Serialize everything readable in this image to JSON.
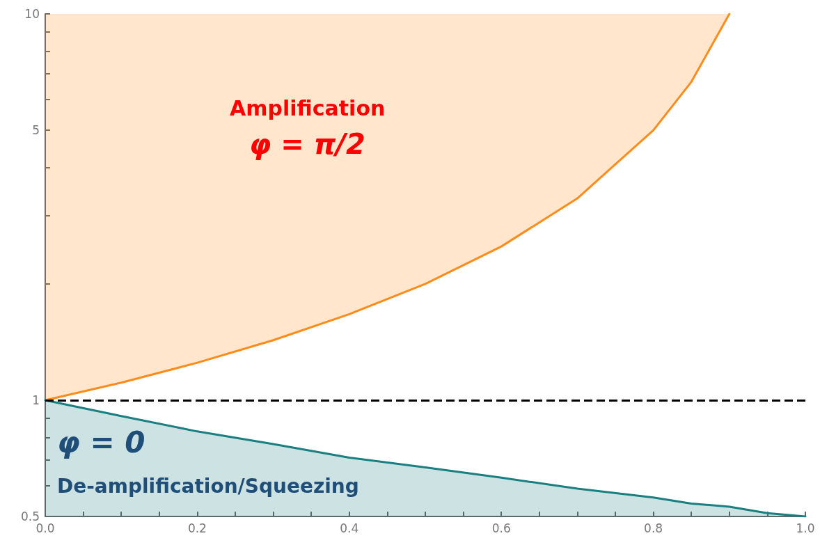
{
  "chart_data": {
    "type": "area",
    "log": "y",
    "x": [
      0,
      0.1,
      0.2,
      0.3,
      0.4,
      0.5,
      0.6,
      0.7,
      0.8,
      0.85,
      0.9,
      0.95,
      1.0
    ],
    "series": [
      {
        "type": "line",
        "color": "#ff8c1a",
        "x": [
          0,
          0.1,
          0.2,
          0.3,
          0.4,
          0.5,
          0.6,
          0.7,
          0.8,
          0.85,
          0.9
        ],
        "values": [
          1,
          1.11,
          1.25,
          1.43,
          1.67,
          2,
          2.5,
          3.33,
          5,
          6.67,
          10
        ],
        "lower": [
          1,
          1.11,
          1.25,
          1.43,
          1.67,
          2,
          2.5,
          3.33,
          5,
          6.67,
          10
        ],
        "upper": [
          10,
          10,
          10,
          10,
          10,
          10,
          10,
          10,
          10,
          10,
          10
        ]
      },
      {
        "color": "#1a7f80",
        "values": [
          1,
          0.91,
          0.83,
          0.77,
          0.71,
          0.67,
          0.63,
          0.59,
          0.56,
          0.54,
          0.53,
          0.51,
          0.5
        ]
      }
    ],
    "xlim": [
      0,
      1
    ],
    "xticks": [
      {
        "value": 0,
        "label": "0.0"
      },
      {
        "value": 0.05,
        "label": null
      },
      {
        "value": 0.1,
        "label": null
      },
      {
        "value": 0.15,
        "label": null
      },
      {
        "value": 0.2,
        "label": "0.2"
      },
      {
        "value": 0.25,
        "label": null
      },
      {
        "value": 0.3,
        "label": null
      },
      {
        "value": 0.35,
        "label": null
      },
      {
        "value": 0.4,
        "label": "0.4"
      },
      {
        "value": 0.45,
        "label": null
      },
      {
        "value": 0.5,
        "label": null
      },
      {
        "value": 0.55,
        "label": null
      },
      {
        "value": 0.6,
        "label": "0.6"
      },
      {
        "value": 0.65,
        "label": null
      },
      {
        "value": 0.7,
        "label": null
      },
      {
        "value": 0.75,
        "label": null
      },
      {
        "value": 0.8,
        "label": "0.8"
      },
      {
        "value": 0.85,
        "label": null
      },
      {
        "value": 0.9,
        "label": null
      },
      {
        "value": 0.95,
        "label": null
      },
      {
        "value": 1,
        "label": "1.0"
      }
    ],
    "ylim": [
      0.5,
      10
    ],
    "yticks": [
      0.5,
      {
        "value": 0.6,
        "label": null
      },
      {
        "value": 0.7,
        "label": null
      },
      {
        "value": 0.8,
        "label": null
      },
      {
        "value": 0.9,
        "label": null
      },
      1,
      {
        "value": 2,
        "label": null
      },
      {
        "value": 3,
        "label": null
      },
      {
        "value": 4,
        "label": null
      },
      5,
      {
        "value": 6,
        "label": null
      },
      {
        "value": 7,
        "label": null
      },
      {
        "value": 8,
        "label": null
      },
      {
        "value": 9,
        "label": null
      },
      10
    ],
    "ref_lines": [
      {
        "axis": "y",
        "value": 1,
        "label": null,
        "color": "#000000",
        "line_style": "dashed"
      }
    ],
    "annotations": [
      "Amplification",
      "φ = π/2",
      "φ = 0",
      "De-amplification/Squeezing"
    ],
    "grid": false,
    "marker": "none",
    "line_style": "solid"
  }
}
